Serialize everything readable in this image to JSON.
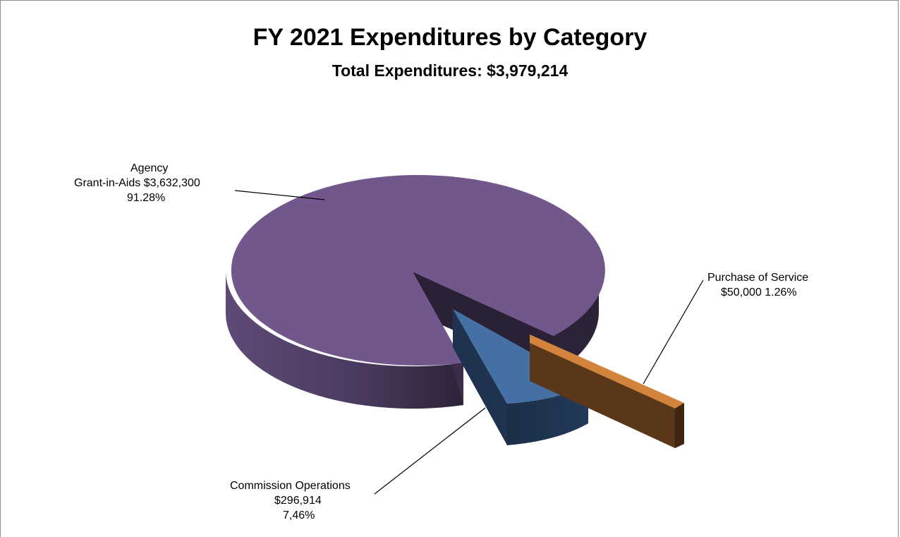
{
  "chart_data": {
    "type": "pie",
    "title": "FY 2021 Expenditures by Category",
    "subtitle": "Total Expenditures:  $3,979,214",
    "slices": [
      {
        "name": "Agency Grant-in-Aids",
        "value": 3632300,
        "percent": 91.28,
        "color": "#71578c",
        "label_lines": [
          "Agency",
          "Grant-in-Aids  $3,632,300",
          "91.28%"
        ]
      },
      {
        "name": "Commission Operations",
        "value": 296914,
        "percent": 7.46,
        "color": "#4570a4",
        "label_lines": [
          "Commission Operations",
          "$296,914",
          "7,46%"
        ]
      },
      {
        "name": "Purchase of Service",
        "value": 50000,
        "percent": 1.26,
        "color": "#d2843c",
        "label_lines": [
          "Purchase of Service",
          "$50,000  1.26%"
        ]
      }
    ]
  }
}
